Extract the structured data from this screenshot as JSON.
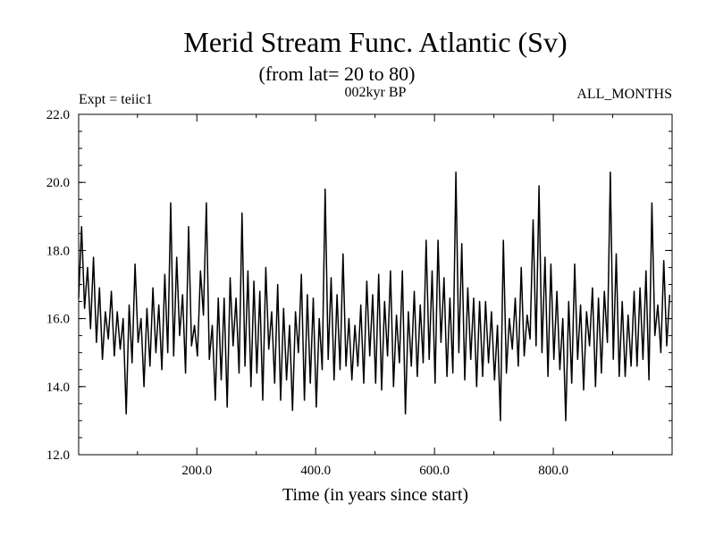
{
  "chart_data": {
    "type": "line",
    "title": "Merid Stream Func. Atlantic (Sv)",
    "subtitle": "(from lat= 20 to 80)",
    "header_left": "Expt = teiic1",
    "header_center": "002kyr BP",
    "header_right": "ALL_MONTHS",
    "xlabel": "Time (in years since start)",
    "ylabel": "",
    "xlim": [
      1,
      1000
    ],
    "ylim": [
      12.0,
      22.0
    ],
    "x_ticks": [
      200,
      400,
      600,
      800
    ],
    "x_tick_labels": [
      "200.0",
      "400.0",
      "600.0",
      "800.0"
    ],
    "y_ticks": [
      12,
      14,
      16,
      18,
      20,
      22
    ],
    "y_tick_labels": [
      "12.0",
      "14.0",
      "16.0",
      "18.0",
      "20.0",
      "22.0"
    ],
    "grid": false,
    "line_color": "#000000",
    "series": [
      {
        "x_start": 1,
        "x_step": 5,
        "values": [
          16.6,
          18.7,
          16.3,
          17.5,
          15.7,
          17.8,
          15.3,
          16.9,
          14.8,
          16.2,
          15.4,
          16.8,
          14.9,
          16.2,
          15.1,
          16.0,
          13.2,
          16.4,
          14.7,
          17.6,
          15.3,
          16.0,
          14.0,
          16.3,
          14.6,
          16.9,
          15.0,
          16.4,
          14.5,
          17.3,
          15.0,
          19.4,
          14.9,
          17.8,
          15.5,
          16.7,
          14.4,
          18.7,
          15.2,
          15.8,
          14.9,
          17.4,
          16.1,
          19.4,
          14.8,
          15.8,
          13.6,
          16.6,
          14.2,
          16.6,
          13.4,
          17.2,
          15.2,
          16.6,
          14.4,
          19.1,
          14.6,
          17.4,
          14.0,
          17.1,
          14.4,
          16.8,
          13.6,
          17.5,
          15.1,
          16.2,
          14.1,
          17.0,
          13.6,
          16.3,
          14.2,
          15.8,
          13.3,
          16.2,
          15.0,
          17.3,
          13.6,
          16.7,
          14.1,
          16.6,
          13.4,
          16.0,
          14.5,
          19.8,
          14.8,
          17.2,
          14.2,
          16.7,
          14.5,
          17.9,
          14.6,
          16.0,
          14.2,
          15.8,
          14.6,
          16.4,
          14.1,
          17.1,
          14.9,
          16.7,
          14.1,
          17.3,
          13.9,
          16.5,
          14.9,
          17.4,
          14.0,
          16.1,
          14.7,
          17.4,
          13.2,
          16.2,
          14.6,
          16.8,
          14.3,
          16.4,
          14.7,
          18.3,
          14.8,
          17.4,
          14.1,
          18.3,
          15.3,
          17.2,
          14.3,
          16.6,
          14.4,
          20.3,
          15.0,
          18.2,
          14.2,
          16.9,
          14.8,
          16.6,
          14.0,
          16.5,
          14.3,
          16.5,
          14.7,
          16.2,
          14.2,
          15.8,
          13.0,
          18.3,
          14.4,
          16.0,
          15.1,
          16.6,
          14.6,
          17.5,
          14.9,
          16.1,
          15.4,
          18.9,
          15.2,
          19.9,
          15.0,
          17.8,
          14.3,
          17.6,
          14.8,
          16.8,
          14.5,
          16.0,
          13.0,
          16.5,
          14.1,
          17.6,
          14.8,
          16.4,
          13.9,
          16.2,
          15.2,
          16.9,
          14.0,
          16.6,
          14.4,
          16.8,
          15.3,
          20.3,
          14.8,
          17.9,
          14.3,
          16.5,
          14.3,
          16.1,
          14.6,
          16.8,
          14.6,
          16.9,
          14.8,
          17.4,
          14.2,
          19.4,
          15.5,
          16.4,
          15.0,
          17.7,
          15.2,
          16.7
        ]
      }
    ]
  }
}
